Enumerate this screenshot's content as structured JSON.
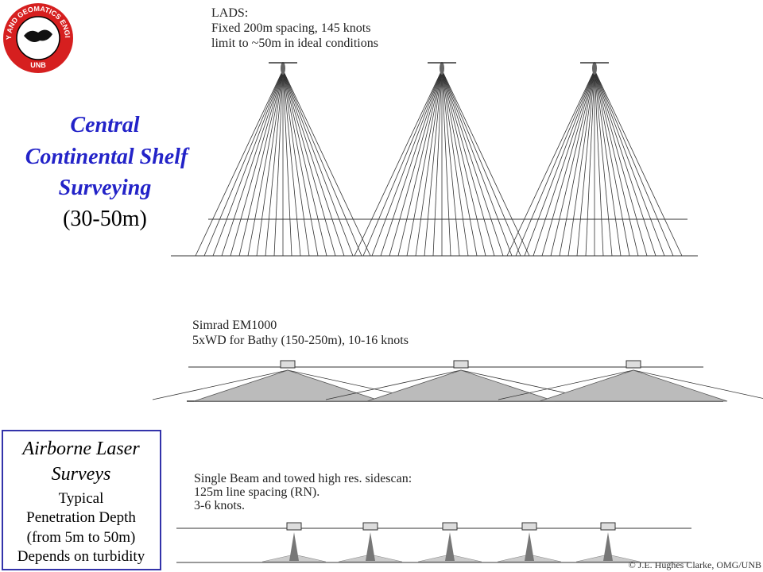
{
  "logo": {
    "ring_text": "GEODESY AND GEOMATICS ENGINEERING",
    "center_text": "UNB"
  },
  "title": [
    "Central",
    "Continental Shelf",
    "Surveying"
  ],
  "subtitle": "(30-50m)",
  "lads": {
    "lines": [
      "LADS:",
      "Fixed 200m spacing, 145 knots",
      "limit to ~50m in ideal conditions"
    ]
  },
  "simrad": {
    "lines": [
      "Simrad EM1000",
      "5xWD for Bathy (150-250m), 10-16 knots"
    ]
  },
  "single_beam": {
    "lines": [
      "Single Beam and towed high res. sidescan:",
      "125m line spacing (RN).",
      "3-6  knots."
    ]
  },
  "airborne_box": {
    "heading": [
      "Airborne Laser",
      "Surveys"
    ],
    "body": [
      "Typical",
      "Penetration Depth",
      "(from 5m to 50m)",
      "Depends on turbidity"
    ]
  },
  "copyright": "© J.E. Hughes Clarke, OMG/UNB"
}
